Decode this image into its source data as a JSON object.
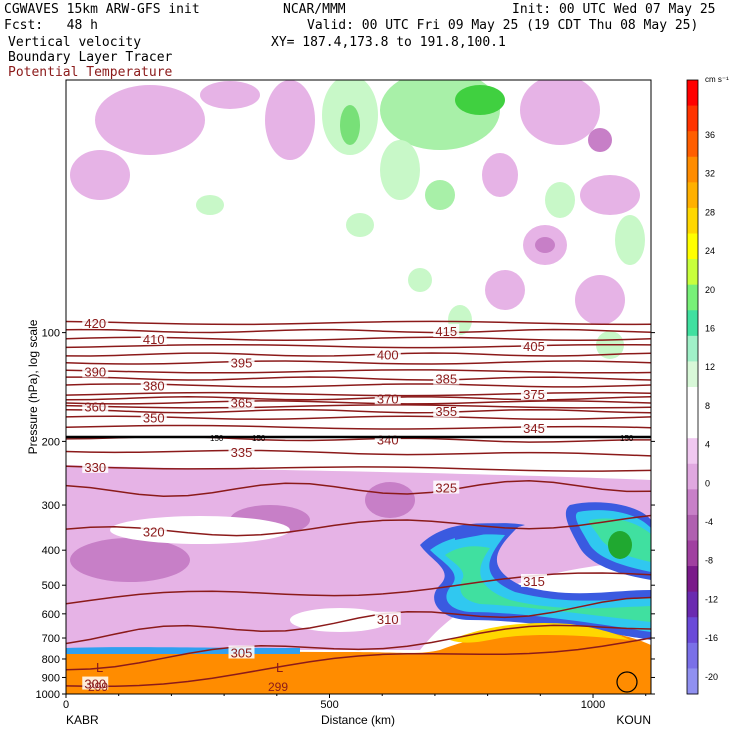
{
  "header": {
    "model": "CGWAVES 15km ARW-GFS init",
    "fcst": "Fcst:   48 h",
    "org": "NCAR/MMM",
    "init": "Init: 00 UTC Wed 07 May 25",
    "valid": "Valid: 00 UTC Fri 09 May 25 (19 CDT Thu 08 May 25)",
    "xy": "XY= 187.4,173.8 to 191.8,100.1",
    "field1": "Vertical velocity",
    "field2": "Boundary Layer Tracer",
    "field3": "Potential Temperature"
  },
  "colors": {
    "theta": "#8b1a1a",
    "tracer": "#ff8c00",
    "subsidence_light": "#e6b3e6",
    "subsidence_mid": "#c77fc7"
  },
  "chart_data": {
    "type": "cross-section",
    "xlabel": "Distance (km)",
    "ylabel": "Pressure (hPa), log scale",
    "x_start_label": "KABR",
    "x_end_label": "KOUN",
    "xlim": [
      0,
      1110
    ],
    "x_ticks": [
      0,
      500,
      1000
    ],
    "ylim": [
      1000,
      20
    ],
    "y_scale": "log",
    "y_ticks": [
      100,
      200,
      300,
      400,
      500,
      600,
      700,
      800,
      900,
      1000
    ],
    "colorbar": {
      "unit": "cm s⁻¹",
      "labels": [
        36,
        32,
        28,
        24,
        20,
        16,
        12,
        8,
        4,
        0,
        -4,
        -8,
        -12,
        -16,
        -20
      ],
      "colors": [
        "#ff0000",
        "#ff3300",
        "#ff5e00",
        "#ff8c00",
        "#ffb000",
        "#ffd700",
        "#ffff00",
        "#c8ff3c",
        "#78f078",
        "#40e0a0",
        "#a0f0c8",
        "#d8f8d8",
        "#ffffff",
        "#ffffff",
        "#f0c8f0",
        "#e0a8e0",
        "#c880c8",
        "#b060b0",
        "#a040a0",
        "#7a1a8a",
        "#6a2ab0",
        "#6a4ad8",
        "#7a70e8",
        "#9090f0"
      ]
    },
    "theta_contours": [
      {
        "value": 300,
        "p_left": 950,
        "p_right": 700
      },
      {
        "value": 305,
        "p_left": 830,
        "p_right": 640
      },
      {
        "value": 310,
        "p_left": 700,
        "p_right": 560
      },
      {
        "value": 315,
        "p_left": 560,
        "p_right": 470
      },
      {
        "value": 320,
        "p_left": 360,
        "p_right": 330
      },
      {
        "value": 325,
        "p_left": 275,
        "p_right": 265
      },
      {
        "value": 330,
        "p_left": 235,
        "p_right": 240
      },
      {
        "value": 335,
        "p_left": 212,
        "p_right": 218
      },
      {
        "value": 340,
        "p_left": 195,
        "p_right": 200
      },
      {
        "value": 345,
        "p_left": 182,
        "p_right": 184
      },
      {
        "value": 350,
        "p_left": 172,
        "p_right": 172
      },
      {
        "value": 355,
        "p_left": 165,
        "p_right": 165
      },
      {
        "value": 360,
        "p_left": 160,
        "p_right": 160
      },
      {
        "value": 365,
        "p_left": 156,
        "p_right": 156
      },
      {
        "value": 370,
        "p_left": 152,
        "p_right": 152
      },
      {
        "value": 375,
        "p_left": 148,
        "p_right": 148
      },
      {
        "value": 380,
        "p_left": 140,
        "p_right": 140
      },
      {
        "value": 385,
        "p_left": 134,
        "p_right": 134
      },
      {
        "value": 390,
        "p_left": 128,
        "p_right": 128
      },
      {
        "value": 395,
        "p_left": 121,
        "p_right": 121
      },
      {
        "value": 400,
        "p_left": 115,
        "p_right": 115
      },
      {
        "value": 405,
        "p_left": 109,
        "p_right": 109
      },
      {
        "value": 410,
        "p_left": 104,
        "p_right": 104
      },
      {
        "value": 415,
        "p_left": 99,
        "p_right": 99
      },
      {
        "value": 420,
        "p_left": 94,
        "p_right": 94
      }
    ],
    "annotations": [
      "L",
      "L",
      "299",
      "299",
      "150",
      "150",
      "150"
    ]
  }
}
